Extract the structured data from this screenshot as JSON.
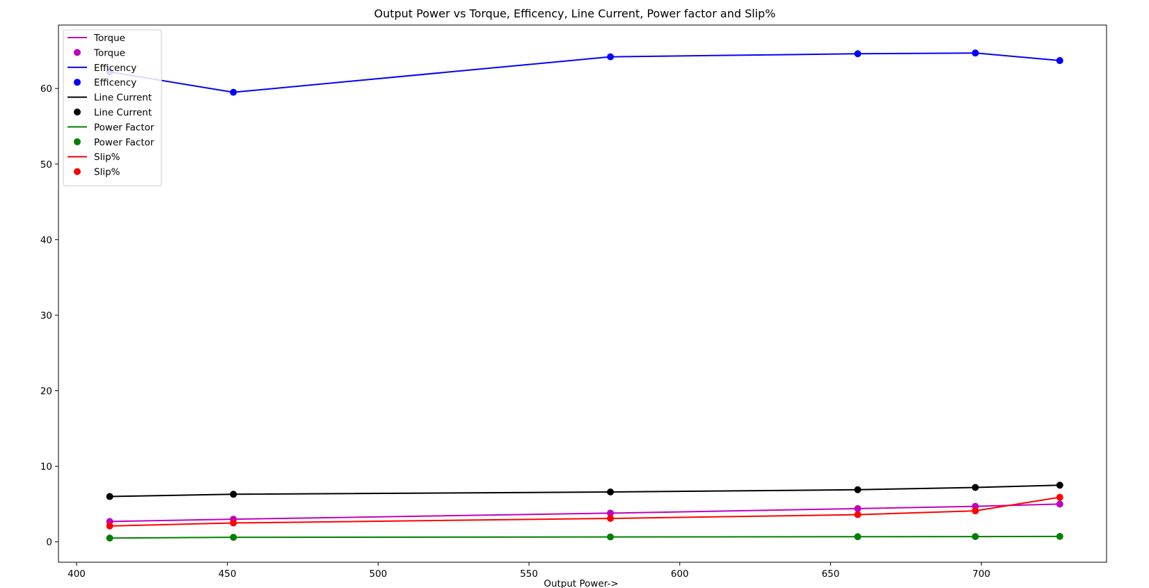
{
  "chart_data": {
    "type": "line",
    "title": "Output Power vs Torque, Efficency, Line Current, Power factor and Slip%",
    "xlabel": "Output Power->",
    "ylabel": "",
    "xlim": [
      394,
      741.5
    ],
    "ylim": [
      -2.7,
      68.4
    ],
    "xticks": [
      400,
      450,
      500,
      550,
      600,
      650,
      700
    ],
    "yticks": [
      0,
      10,
      20,
      30,
      40,
      50,
      60
    ],
    "grid": false,
    "legend_position": "top-left",
    "x": [
      411,
      452,
      577,
      659,
      698,
      726
    ],
    "series": [
      {
        "name": "Torque",
        "color": "#bf00bf",
        "values": [
          2.7,
          3.0,
          3.8,
          4.4,
          4.7,
          5.0
        ]
      },
      {
        "name": "Efficency",
        "color": "#0000ff",
        "values": [
          62.2,
          59.5,
          64.2,
          64.6,
          64.7,
          63.7
        ]
      },
      {
        "name": "Line Current",
        "color": "#000000",
        "values": [
          6.0,
          6.3,
          6.6,
          6.9,
          7.2,
          7.5
        ]
      },
      {
        "name": "Power Factor",
        "color": "#008000",
        "values": [
          0.5,
          0.6,
          0.65,
          0.68,
          0.7,
          0.72
        ]
      },
      {
        "name": "Slip%",
        "color": "#ff0000",
        "values": [
          2.1,
          2.5,
          3.1,
          3.6,
          4.1,
          5.9
        ]
      }
    ]
  }
}
